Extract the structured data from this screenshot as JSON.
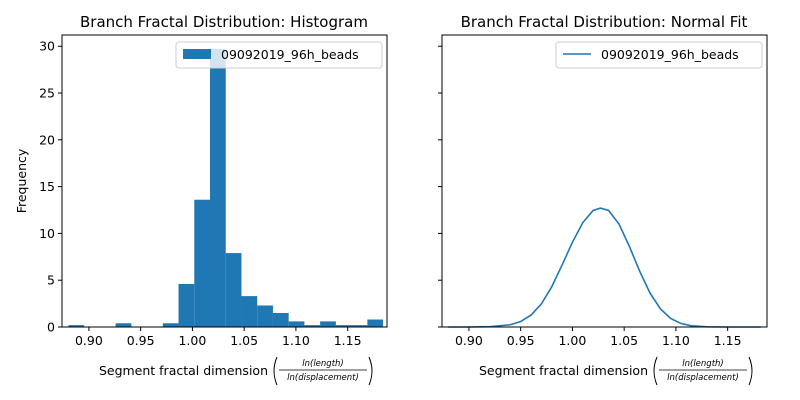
{
  "chart_data": [
    {
      "type": "bar",
      "title": "Branch Fractal Distribution: Histogram",
      "xlabel": "Segment fractal dimension",
      "xlabel_fraction": {
        "numerator": "ln(length)",
        "denominator": "ln(displacement)"
      },
      "ylabel": "Frequency",
      "xlim": [
        0.874,
        1.188
      ],
      "ylim": [
        0,
        31.2
      ],
      "xticks": [
        "0.90",
        "0.95",
        "1.00",
        "1.05",
        "1.10",
        "1.15"
      ],
      "yticks": [
        "0",
        "5",
        "10",
        "15",
        "20",
        "25",
        "30"
      ],
      "legend": {
        "location": "top-right",
        "entries": [
          "09092019_96h_beads"
        ]
      },
      "color": "#1f77b4",
      "bin_width": 0.0152,
      "bins": [
        {
          "x0": 0.8802,
          "value": 0.2
        },
        {
          "x0": 0.8954,
          "value": 0.0
        },
        {
          "x0": 0.9106,
          "value": 0.0
        },
        {
          "x0": 0.9258,
          "value": 0.4
        },
        {
          "x0": 0.941,
          "value": 0.0
        },
        {
          "x0": 0.9562,
          "value": 0.0
        },
        {
          "x0": 0.9714,
          "value": 0.4
        },
        {
          "x0": 0.9866,
          "value": 4.6
        },
        {
          "x0": 1.0018,
          "value": 13.6
        },
        {
          "x0": 1.017,
          "value": 29.7
        },
        {
          "x0": 1.0322,
          "value": 7.9
        },
        {
          "x0": 1.0474,
          "value": 3.3
        },
        {
          "x0": 1.0626,
          "value": 2.3
        },
        {
          "x0": 1.0778,
          "value": 1.5
        },
        {
          "x0": 1.093,
          "value": 0.6
        },
        {
          "x0": 1.1082,
          "value": 0.2
        },
        {
          "x0": 1.1234,
          "value": 0.6
        },
        {
          "x0": 1.1386,
          "value": 0.2
        },
        {
          "x0": 1.1538,
          "value": 0.2
        },
        {
          "x0": 1.169,
          "value": 0.8
        }
      ]
    },
    {
      "type": "line",
      "title": "Branch Fractal Distribution: Normal Fit",
      "xlabel": "Segment fractal dimension",
      "xlabel_fraction": {
        "numerator": "ln(length)",
        "denominator": "ln(displacement)"
      },
      "ylabel": "",
      "xlim": [
        0.874,
        1.188
      ],
      "ylim": [
        0,
        31.2
      ],
      "xticks": [
        "0.90",
        "0.95",
        "1.00",
        "1.05",
        "1.10",
        "1.15"
      ],
      "yticks_labels_visible": false,
      "legend": {
        "location": "top-right",
        "entries": [
          "09092019_96h_beads"
        ]
      },
      "color": "#1f77b4",
      "series": [
        {
          "name": "09092019_96h_beads",
          "x": [
            0.88,
            0.9,
            0.92,
            0.94,
            0.95,
            0.96,
            0.97,
            0.98,
            0.99,
            1.0,
            1.01,
            1.02,
            1.027,
            1.035,
            1.045,
            1.055,
            1.065,
            1.075,
            1.085,
            1.095,
            1.105,
            1.115,
            1.13,
            1.15,
            1.182
          ],
          "y": [
            0.0,
            0.0,
            0.03,
            0.24,
            0.58,
            1.27,
            2.47,
            4.29,
            6.62,
            9.05,
            11.15,
            12.45,
            12.7,
            12.45,
            11.0,
            8.62,
            5.96,
            3.62,
            1.94,
            0.91,
            0.37,
            0.13,
            0.02,
            0.0,
            0.0
          ]
        }
      ]
    }
  ]
}
